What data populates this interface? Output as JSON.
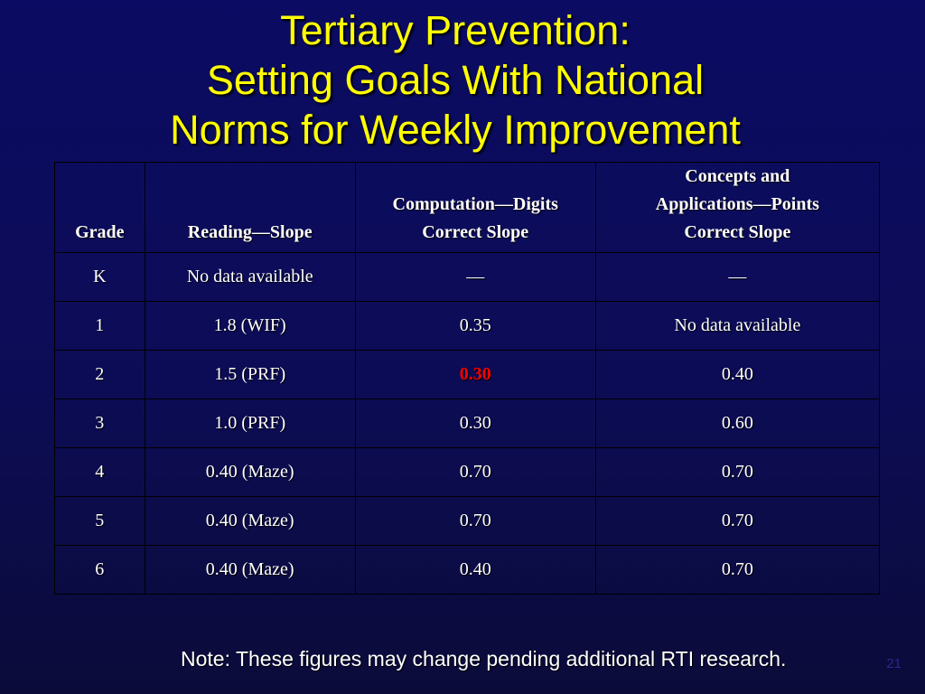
{
  "title": {
    "line1": "Tertiary Prevention:",
    "line2": "Setting Goals With National",
    "line3": "Norms for Weekly Improvement"
  },
  "table": {
    "headers": {
      "grade": "Grade",
      "reading": "Reading—Slope",
      "computation": [
        "Computation—Digits",
        "Correct Slope"
      ],
      "concepts": [
        "Concepts and",
        "Applications—Points",
        "Correct Slope"
      ]
    },
    "rows": [
      {
        "grade": "K",
        "reading": "No data available",
        "computation": "—",
        "concepts": "—"
      },
      {
        "grade": "1",
        "reading": "1.8 (WIF)",
        "computation": "0.35",
        "concepts": "No data available"
      },
      {
        "grade": "2",
        "reading": "1.5 (PRF)",
        "computation": "0.30",
        "concepts": "0.40"
      },
      {
        "grade": "3",
        "reading": "1.0 (PRF)",
        "computation": "0.30",
        "concepts": "0.60"
      },
      {
        "grade": "4",
        "reading": "0.40 (Maze)",
        "computation": "0.70",
        "concepts": "0.70"
      },
      {
        "grade": "5",
        "reading": "0.40 (Maze)",
        "computation": "0.70",
        "concepts": "0.70"
      },
      {
        "grade": "6",
        "reading": "0.40 (Maze)",
        "computation": "0.40",
        "concepts": "0.70"
      }
    ]
  },
  "highlight_color": "#ff0000",
  "note": "Note: These figures may change pending additional RTI research.",
  "slide_number": "21"
}
